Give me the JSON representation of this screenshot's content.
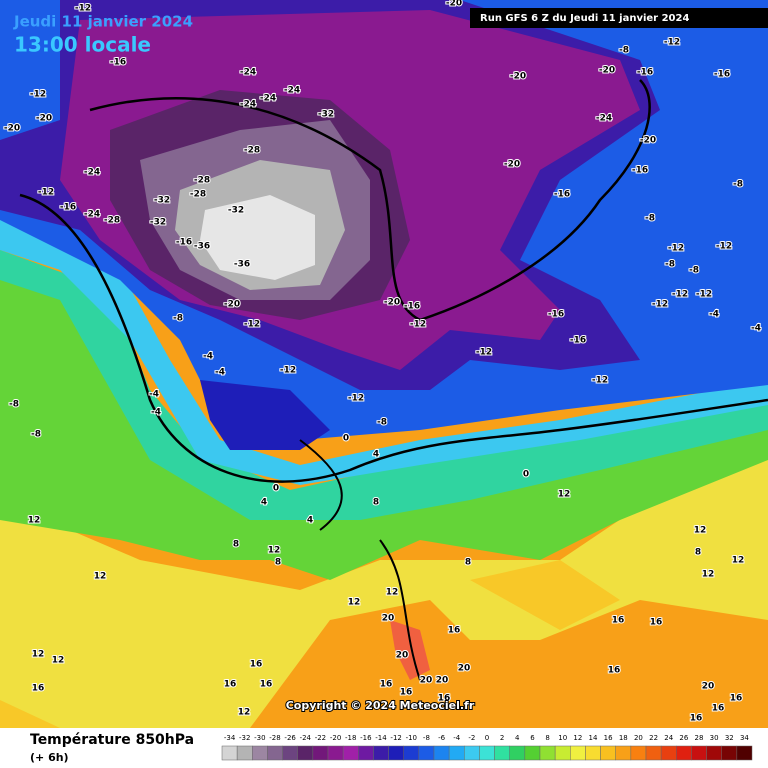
{
  "header": {
    "date": "Jeudi 11 janvier 2024",
    "time": "13:00 locale",
    "run": "Run GFS 6 Z du Jeudi 11 janvier 2024"
  },
  "copyright": "Copyright © 2024 Meteociel.fr",
  "footer": {
    "title": "Température 850hPa",
    "subtitle": "(+ 6h)"
  },
  "legend": {
    "values": [
      -34,
      -32,
      -30,
      -28,
      -26,
      -24,
      -22,
      -20,
      -18,
      -16,
      -14,
      -12,
      -10,
      -8,
      -6,
      -4,
      -2,
      0,
      2,
      4,
      6,
      8,
      10,
      12,
      14,
      16,
      18,
      20,
      22,
      24,
      26,
      28,
      30,
      32,
      34
    ],
    "colors": [
      "#d4d4d4",
      "#b4b4b4",
      "#9c86a2",
      "#846690",
      "#6c4480",
      "#5a2468",
      "#72187a",
      "#8a1a90",
      "#a020a8",
      "#6e1aa2",
      "#3c1ca8",
      "#1e1eb8",
      "#1c3cd2",
      "#1c5ce6",
      "#1c84f0",
      "#22aaf4",
      "#3ccaf0",
      "#3ce2d6",
      "#30e0a0",
      "#30d062",
      "#54d032",
      "#90e032",
      "#c8ec32",
      "#f0f040",
      "#f8dc30",
      "#f8c020",
      "#f8a018",
      "#f88010",
      "#f06010",
      "#e84010",
      "#e02010",
      "#c81010",
      "#a00808",
      "#780404",
      "#500000"
    ]
  },
  "map": {
    "labels": [
      "-12",
      "-20",
      "-12",
      "-8",
      "-16",
      "-24",
      "-24",
      "-24",
      "-24",
      "-20",
      "-20",
      "-16",
      "-16",
      "-12",
      "-20",
      "-20",
      "-32",
      "-24",
      "-20",
      "-28",
      "-20",
      "-16",
      "-24",
      "-28",
      "-32",
      "-28",
      "-16",
      "-8",
      "-12",
      "-16",
      "-32",
      "-8",
      "-24",
      "-28",
      "-32",
      "-16",
      "-36",
      "-36",
      "-12",
      "-12",
      "-8",
      "-8",
      "-20",
      "-20",
      "-16",
      "-16",
      "-12",
      "-12",
      "-12",
      "-4",
      "-8",
      "-12",
      "-12",
      "-16",
      "-4",
      "-4",
      "-12",
      "-4",
      "-12",
      "-12",
      "-8",
      "-4",
      "-12",
      "-8",
      "-4",
      "-8",
      "0",
      "4",
      "0",
      "0",
      "4",
      "8",
      "4",
      "12",
      "12",
      "8",
      "12",
      "8",
      "8",
      "12",
      "8",
      "12",
      "12",
      "12",
      "12",
      "12",
      "16",
      "16",
      "20",
      "16",
      "12",
      "12",
      "20",
      "16",
      "16",
      "20",
      "20",
      "20",
      "16",
      "16",
      "16",
      "16",
      "16",
      "16",
      "20",
      "16",
      "12",
      "16",
      "16"
    ]
  }
}
